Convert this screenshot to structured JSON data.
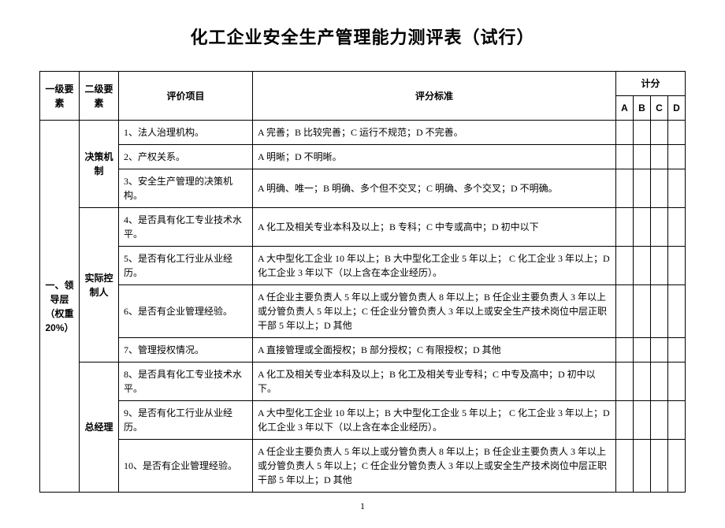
{
  "title": "化工企业安全生产管理能力测评表（试行）",
  "page_number": "1",
  "headers": {
    "level1": "一级要素",
    "level2": "二级要素",
    "item": "评价项目",
    "standard": "评分标准",
    "score": "计分",
    "A": "A",
    "B": "B",
    "C": "C",
    "D": "D"
  },
  "level1_label": "一、领导层（权重20%）",
  "groups": [
    {
      "level2": "决策机制",
      "rows": [
        {
          "item": "1、法人治理机构。",
          "standard": "A 完善；B 比较完善；C 运行不规范；D 不完善。"
        },
        {
          "item": "2、产权关系。",
          "standard": "A 明晰；D 不明晰。"
        },
        {
          "item": "3、安全生产管理的决策机构。",
          "standard": "A 明确、唯一；B 明确、多个但不交叉；C 明确、多个交叉；D 不明确。"
        }
      ]
    },
    {
      "level2": "实际控制人",
      "rows": [
        {
          "item": "4、是否具有化工专业技术水平。",
          "standard": "A 化工及相关专业本科及以上；B 专科；C 中专或高中；D 初中以下"
        },
        {
          "item": "5、是否有化工行业从业经历。",
          "standard": "A 大中型化工企业 10 年以上；B 大中型化工企业 5 年以上； C 化工企业 3 年以上；D 化工企业 3 年以下（以上含在本企业经历）。"
        },
        {
          "item": "6、是否有企业管理经验。",
          "standard": "A 任企业主要负责人 5 年以上或分管负责人 8 年以上；B 任企业主要负责人 3 年以上或分管负责人 5 年以上；C 任企业分管负责人 3 年以上或安全生产技术岗位中层正职干部 5 年以上；D 其他"
        },
        {
          "item": "7、管理授权情况。",
          "standard": "A 直接管理或全面授权；B 部分授权；C 有限授权；D 其他"
        }
      ]
    },
    {
      "level2": "总经理",
      "rows": [
        {
          "item": "8、是否具有化工专业技术水平。",
          "standard": "A 化工及相关专业本科及以上；B 化工及相关专业专科；C 中专及高中；D 初中以下。"
        },
        {
          "item": "9、是否有化工行业从业经历。",
          "standard": "A 大中型化工企业 10 年以上；B 大中型化工企业 5 年以上； C 化工企业 3 年以上；D 化工企业 3 年以下（以上含在本企业经历）。"
        },
        {
          "item": "10、是否有企业管理经验。",
          "standard": "A 任企业主要负责人 5 年以上或分管负责人 8 年以上；B 任企业主要负责人 3 年以上或分管负责人 5 年以上；C 任企业分管负责人 3 年以上或安全生产技术岗位中层正职干部 5 年以上；D 其他"
        }
      ]
    }
  ]
}
